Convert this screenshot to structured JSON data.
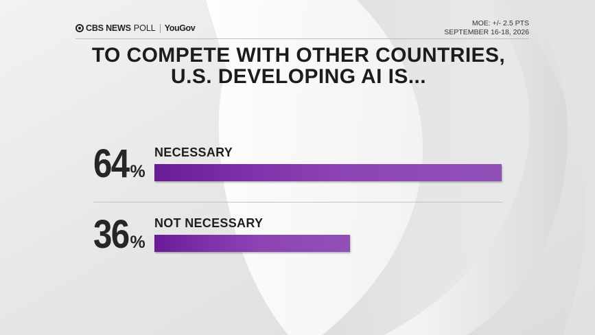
{
  "header": {
    "brand_name": "CBS NEWS",
    "brand_suffix": "POLL",
    "partner": "YouGov",
    "moe": "MOE: +/- 2.5 PTS",
    "dates": "SEPTEMBER 16-18, 2026"
  },
  "title_lines": [
    "TO COMPETE WITH OTHER COUNTRIES,",
    "U.S. DEVELOPING AI IS..."
  ],
  "chart_data": {
    "type": "bar",
    "orientation": "horizontal",
    "categories": [
      "NECESSARY",
      "NOT NECESSARY"
    ],
    "values": [
      64,
      36
    ],
    "value_labels": [
      "64",
      "36"
    ],
    "unit": "%",
    "xlim": [
      0,
      100
    ],
    "title": "TO COMPETE WITH OTHER COUNTRIES, U.S. DEVELOPING AI IS...",
    "grid": false,
    "legend": "none",
    "bar_color": "#8a44b4"
  }
}
